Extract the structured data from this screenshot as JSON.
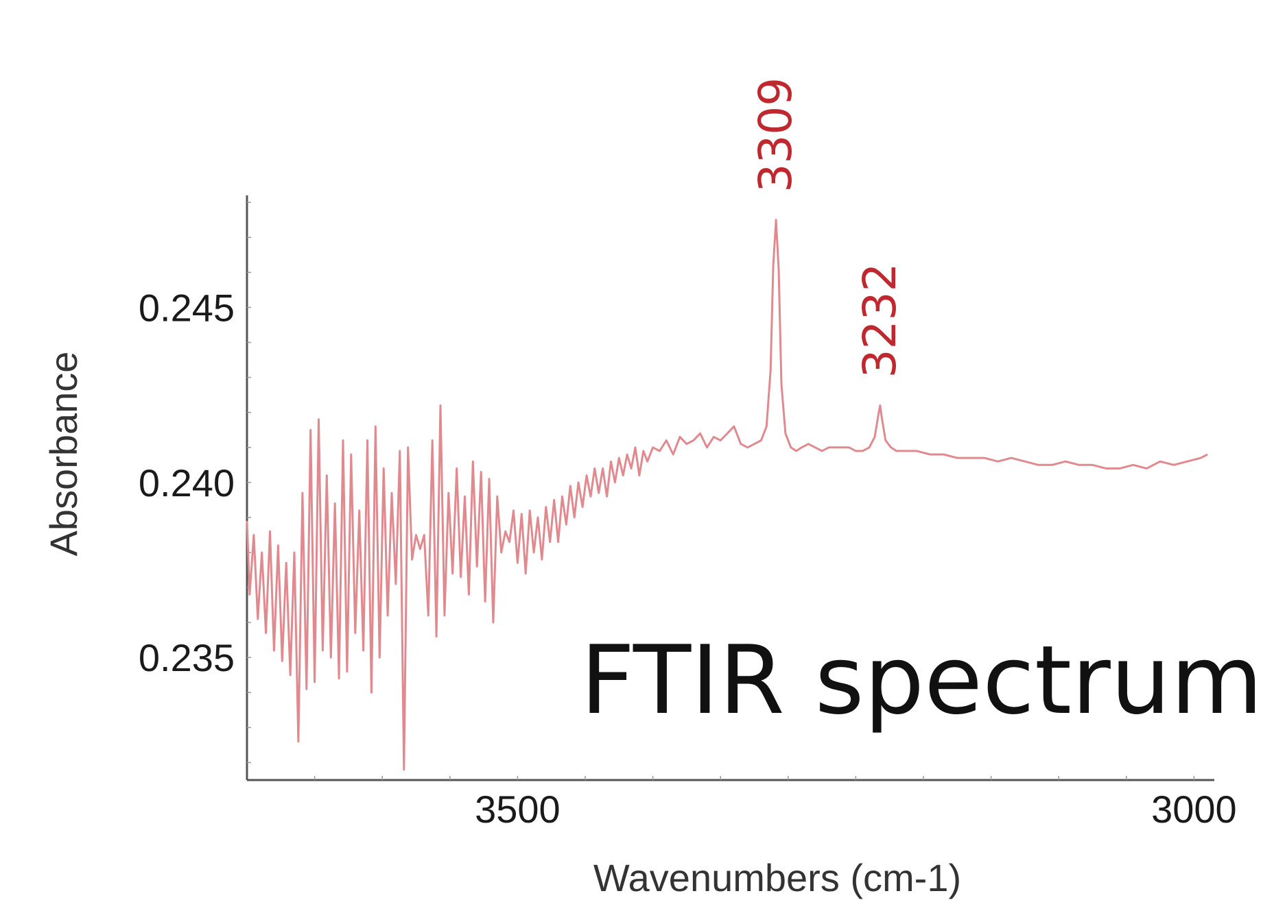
{
  "chart_data": {
    "type": "line",
    "title": "FTIR spectrum",
    "xlabel": "Wavenumbers (cm-1)",
    "ylabel": "Absorbance",
    "xlim": [
      3700,
      2985
    ],
    "ylim": [
      0.2315,
      0.2482
    ],
    "x_ticks": [
      {
        "value": 3500,
        "label": "3500"
      },
      {
        "value": 3000,
        "label": "3000"
      }
    ],
    "y_ticks": [
      {
        "value": 0.245,
        "label": "0.245"
      },
      {
        "value": 0.24,
        "label": "0.240"
      },
      {
        "value": 0.235,
        "label": "0.235"
      }
    ],
    "grid": false,
    "series": [
      {
        "color": "#e08a8f",
        "points": [
          [
            3700,
            0.2389
          ],
          [
            3698,
            0.2368
          ],
          [
            3695,
            0.2385
          ],
          [
            3692,
            0.2361
          ],
          [
            3689,
            0.238
          ],
          [
            3686,
            0.2357
          ],
          [
            3683,
            0.2386
          ],
          [
            3680,
            0.2352
          ],
          [
            3677,
            0.2382
          ],
          [
            3674,
            0.2349
          ],
          [
            3671,
            0.2377
          ],
          [
            3668,
            0.2345
          ],
          [
            3665,
            0.238
          ],
          [
            3662,
            0.2326
          ],
          [
            3659,
            0.2397
          ],
          [
            3656,
            0.2341
          ],
          [
            3653,
            0.2415
          ],
          [
            3650,
            0.2343
          ],
          [
            3647,
            0.2418
          ],
          [
            3644,
            0.2352
          ],
          [
            3641,
            0.2402
          ],
          [
            3638,
            0.235
          ],
          [
            3635,
            0.2394
          ],
          [
            3632,
            0.2344
          ],
          [
            3629,
            0.2412
          ],
          [
            3626,
            0.2346
          ],
          [
            3623,
            0.2408
          ],
          [
            3620,
            0.2357
          ],
          [
            3617,
            0.2392
          ],
          [
            3614,
            0.2352
          ],
          [
            3611,
            0.2412
          ],
          [
            3608,
            0.234
          ],
          [
            3605,
            0.2416
          ],
          [
            3602,
            0.235
          ],
          [
            3599,
            0.2404
          ],
          [
            3596,
            0.2362
          ],
          [
            3593,
            0.2397
          ],
          [
            3590,
            0.2371
          ],
          [
            3587,
            0.2409
          ],
          [
            3584,
            0.2318
          ],
          [
            3581,
            0.241
          ],
          [
            3578,
            0.2378
          ],
          [
            3575,
            0.2385
          ],
          [
            3572,
            0.2381
          ],
          [
            3569,
            0.2385
          ],
          [
            3566,
            0.2362
          ],
          [
            3563,
            0.2412
          ],
          [
            3560,
            0.2356
          ],
          [
            3557,
            0.2422
          ],
          [
            3554,
            0.2362
          ],
          [
            3551,
            0.2397
          ],
          [
            3548,
            0.2374
          ],
          [
            3545,
            0.2404
          ],
          [
            3542,
            0.2373
          ],
          [
            3539,
            0.2396
          ],
          [
            3536,
            0.2368
          ],
          [
            3533,
            0.2406
          ],
          [
            3530,
            0.2376
          ],
          [
            3527,
            0.2403
          ],
          [
            3524,
            0.2366
          ],
          [
            3521,
            0.2401
          ],
          [
            3518,
            0.236
          ],
          [
            3515,
            0.2396
          ],
          [
            3512,
            0.238
          ],
          [
            3509,
            0.2386
          ],
          [
            3506,
            0.2383
          ],
          [
            3503,
            0.2392
          ],
          [
            3500,
            0.2377
          ],
          [
            3497,
            0.2391
          ],
          [
            3494,
            0.2374
          ],
          [
            3491,
            0.2392
          ],
          [
            3488,
            0.238
          ],
          [
            3485,
            0.239
          ],
          [
            3482,
            0.2378
          ],
          [
            3479,
            0.2393
          ],
          [
            3476,
            0.2383
          ],
          [
            3473,
            0.2395
          ],
          [
            3470,
            0.2383
          ],
          [
            3467,
            0.2396
          ],
          [
            3464,
            0.2388
          ],
          [
            3461,
            0.2399
          ],
          [
            3458,
            0.239
          ],
          [
            3455,
            0.24
          ],
          [
            3452,
            0.2393
          ],
          [
            3449,
            0.2402
          ],
          [
            3446,
            0.2396
          ],
          [
            3443,
            0.2404
          ],
          [
            3440,
            0.2397
          ],
          [
            3437,
            0.2404
          ],
          [
            3434,
            0.2396
          ],
          [
            3431,
            0.2406
          ],
          [
            3428,
            0.24
          ],
          [
            3425,
            0.2407
          ],
          [
            3422,
            0.2402
          ],
          [
            3419,
            0.2408
          ],
          [
            3416,
            0.2404
          ],
          [
            3413,
            0.241
          ],
          [
            3410,
            0.2402
          ],
          [
            3407,
            0.2409
          ],
          [
            3404,
            0.2406
          ],
          [
            3400,
            0.241
          ],
          [
            3395,
            0.2409
          ],
          [
            3390,
            0.2412
          ],
          [
            3385,
            0.2408
          ],
          [
            3380,
            0.2413
          ],
          [
            3375,
            0.2411
          ],
          [
            3370,
            0.2412
          ],
          [
            3365,
            0.2414
          ],
          [
            3360,
            0.241
          ],
          [
            3355,
            0.2413
          ],
          [
            3350,
            0.2412
          ],
          [
            3345,
            0.2414
          ],
          [
            3340,
            0.2416
          ],
          [
            3335,
            0.2411
          ],
          [
            3330,
            0.241
          ],
          [
            3325,
            0.2411
          ],
          [
            3320,
            0.2412
          ],
          [
            3316,
            0.2416
          ],
          [
            3313,
            0.2432
          ],
          [
            3311,
            0.2462
          ],
          [
            3309,
            0.2475
          ],
          [
            3307,
            0.2461
          ],
          [
            3305,
            0.2428
          ],
          [
            3302,
            0.2414
          ],
          [
            3298,
            0.241
          ],
          [
            3294,
            0.2409
          ],
          [
            3290,
            0.241
          ],
          [
            3285,
            0.2411
          ],
          [
            3280,
            0.241
          ],
          [
            3275,
            0.2409
          ],
          [
            3270,
            0.241
          ],
          [
            3265,
            0.241
          ],
          [
            3260,
            0.241
          ],
          [
            3255,
            0.241
          ],
          [
            3250,
            0.2409
          ],
          [
            3245,
            0.2409
          ],
          [
            3240,
            0.241
          ],
          [
            3236,
            0.2413
          ],
          [
            3233,
            0.242
          ],
          [
            3232,
            0.2422
          ],
          [
            3231,
            0.2419
          ],
          [
            3228,
            0.2412
          ],
          [
            3224,
            0.241
          ],
          [
            3220,
            0.2409
          ],
          [
            3215,
            0.2409
          ],
          [
            3205,
            0.2409
          ],
          [
            3195,
            0.2408
          ],
          [
            3185,
            0.2408
          ],
          [
            3175,
            0.2407
          ],
          [
            3165,
            0.2407
          ],
          [
            3155,
            0.2407
          ],
          [
            3145,
            0.2406
          ],
          [
            3135,
            0.2407
          ],
          [
            3125,
            0.2406
          ],
          [
            3115,
            0.2405
          ],
          [
            3105,
            0.2405
          ],
          [
            3095,
            0.2406
          ],
          [
            3085,
            0.2405
          ],
          [
            3075,
            0.2405
          ],
          [
            3065,
            0.2404
          ],
          [
            3055,
            0.2404
          ],
          [
            3045,
            0.2405
          ],
          [
            3035,
            0.2404
          ],
          [
            3025,
            0.2406
          ],
          [
            3015,
            0.2405
          ],
          [
            3005,
            0.2406
          ],
          [
            2995,
            0.2407
          ],
          [
            2990,
            0.2408
          ]
        ]
      }
    ],
    "annotations": [
      {
        "x": 3309,
        "y": 0.2475,
        "text": "3309",
        "color": "#c0282f"
      },
      {
        "x": 3232,
        "y": 0.2422,
        "text": "3232",
        "color": "#c0282f"
      }
    ]
  }
}
